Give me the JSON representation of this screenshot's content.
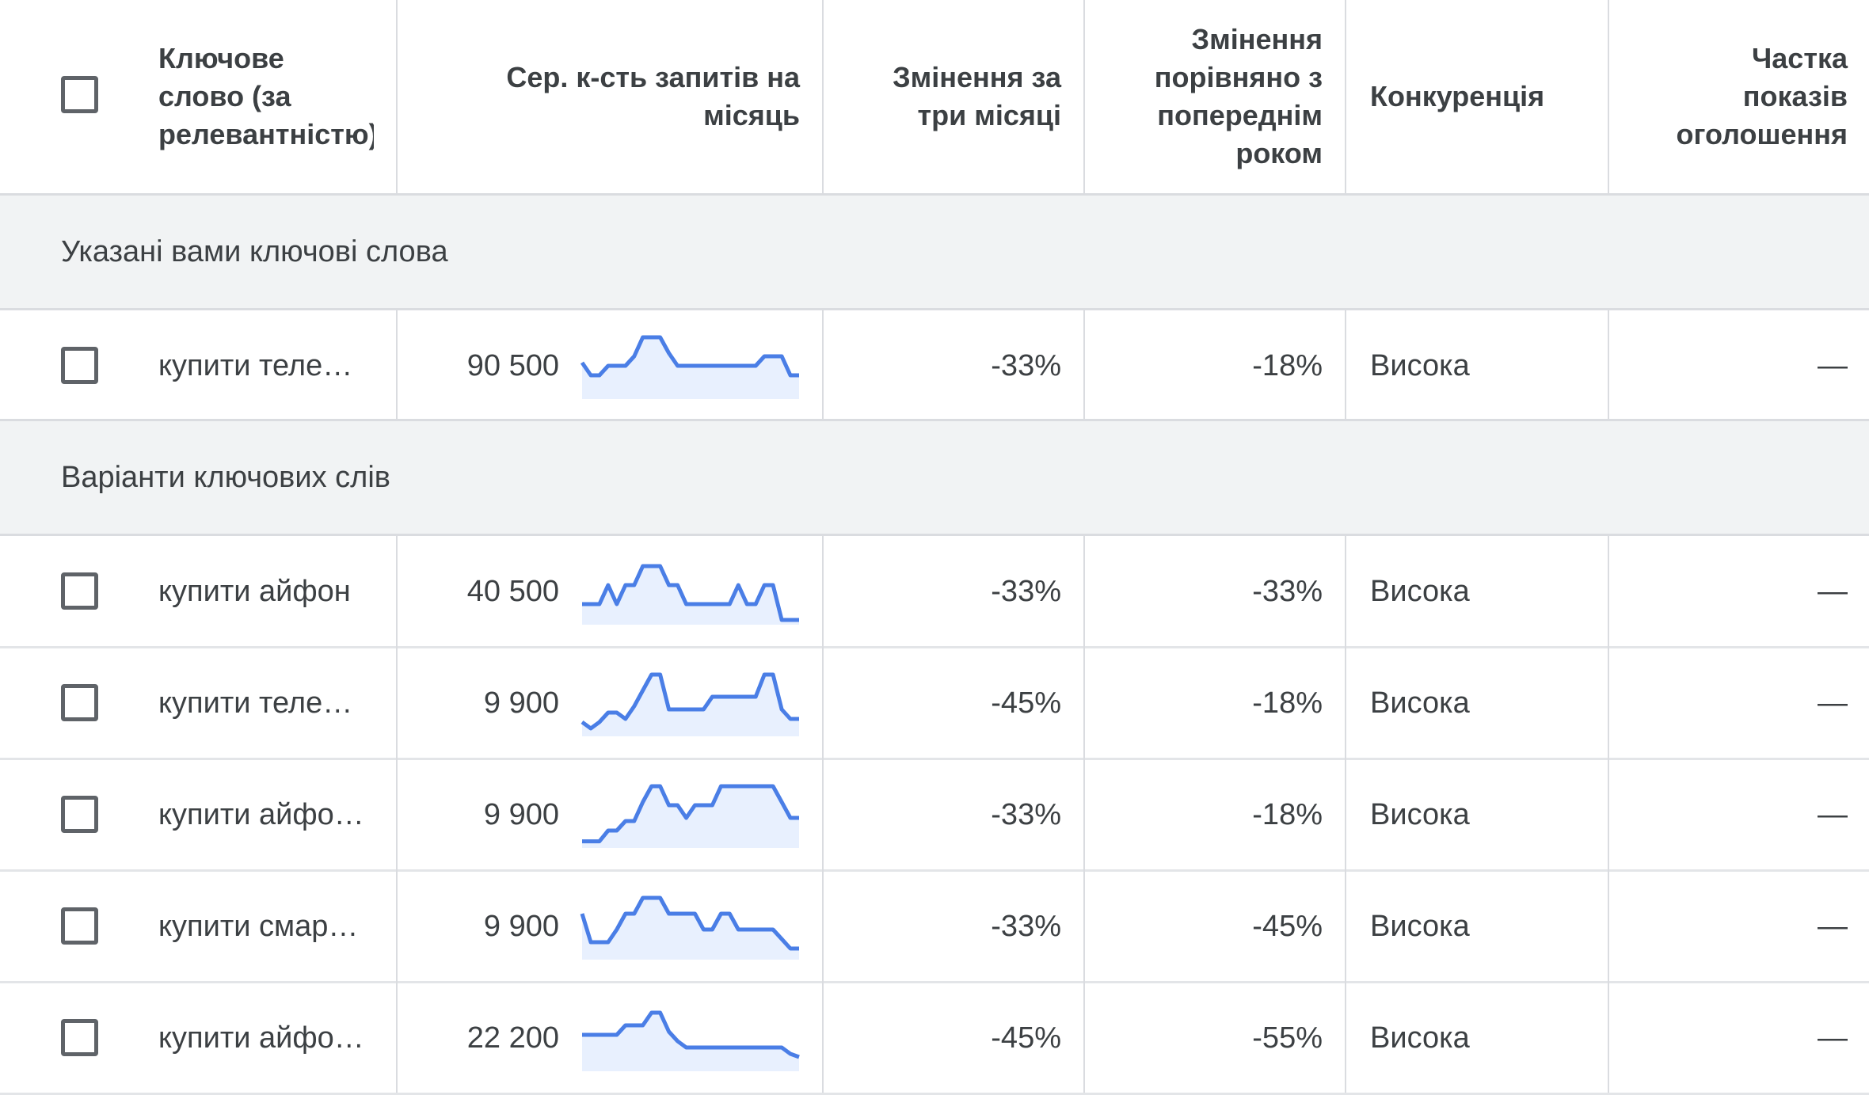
{
  "columns": {
    "keyword": [
      "Ключове",
      "слово (за",
      "релевантністю)"
    ],
    "avg_searches": [
      "Сер. к-сть запитів на",
      "місяць"
    ],
    "three_month": [
      "Змінення за",
      "три місяці"
    ],
    "yoy": [
      "Змінення",
      "порівняно з",
      "попереднім",
      "роком"
    ],
    "competition": [
      "Конкуренція"
    ],
    "impression_share": [
      "Частка",
      "показів",
      "оголошення"
    ]
  },
  "groups": {
    "provided": "Указані вами ключові слова",
    "ideas": "Варіанти ключових слів"
  },
  "provided_rows": [
    {
      "keyword": "купити теле…",
      "avg": "90 500",
      "trend": [
        0.55,
        0.35,
        0.35,
        0.5,
        0.5,
        0.5,
        0.65,
        0.95,
        0.95,
        0.95,
        0.7,
        0.5,
        0.5,
        0.5,
        0.5,
        0.5,
        0.5,
        0.5,
        0.5,
        0.5,
        0.5,
        0.65,
        0.65,
        0.65,
        0.35,
        0.35
      ],
      "three_month": "-33%",
      "yoy": "-18%",
      "competition": "Висока",
      "impression_share": "—"
    }
  ],
  "idea_rows": [
    {
      "keyword": "купити айфон",
      "avg": "40 500",
      "trend": [
        0.3,
        0.3,
        0.3,
        0.6,
        0.3,
        0.6,
        0.6,
        0.9,
        0.9,
        0.9,
        0.6,
        0.6,
        0.3,
        0.3,
        0.3,
        0.3,
        0.3,
        0.3,
        0.6,
        0.3,
        0.3,
        0.6,
        0.6,
        0.05,
        0.05,
        0.05
      ],
      "three_month": "-33%",
      "yoy": "-33%",
      "competition": "Висока",
      "impression_share": "—"
    },
    {
      "keyword": "купити теле…",
      "avg": "9 900",
      "trend": [
        0.2,
        0.1,
        0.2,
        0.35,
        0.35,
        0.25,
        0.45,
        0.7,
        0.95,
        0.95,
        0.4,
        0.4,
        0.4,
        0.4,
        0.4,
        0.6,
        0.6,
        0.6,
        0.6,
        0.6,
        0.6,
        0.95,
        0.95,
        0.4,
        0.25,
        0.25
      ],
      "three_month": "-45%",
      "yoy": "-18%",
      "competition": "Висока",
      "impression_share": "—"
    },
    {
      "keyword": "купити айфо…",
      "avg": "9 900",
      "trend": [
        0.08,
        0.08,
        0.08,
        0.25,
        0.25,
        0.4,
        0.4,
        0.7,
        0.95,
        0.95,
        0.65,
        0.65,
        0.45,
        0.65,
        0.65,
        0.65,
        0.95,
        0.95,
        0.95,
        0.95,
        0.95,
        0.95,
        0.95,
        0.7,
        0.45,
        0.45
      ],
      "three_month": "-33%",
      "yoy": "-18%",
      "competition": "Висока",
      "impression_share": "—"
    },
    {
      "keyword": "купити смар…",
      "avg": "9 900",
      "trend": [
        0.7,
        0.25,
        0.25,
        0.25,
        0.45,
        0.7,
        0.7,
        0.95,
        0.95,
        0.95,
        0.7,
        0.7,
        0.7,
        0.7,
        0.45,
        0.45,
        0.7,
        0.7,
        0.45,
        0.45,
        0.45,
        0.45,
        0.45,
        0.3,
        0.15,
        0.15
      ],
      "three_month": "-33%",
      "yoy": "-45%",
      "competition": "Висока",
      "impression_share": "—"
    },
    {
      "keyword": "купити айфо…",
      "avg": "22 200",
      "trend": [
        0.55,
        0.55,
        0.55,
        0.55,
        0.55,
        0.7,
        0.7,
        0.7,
        0.9,
        0.9,
        0.6,
        0.45,
        0.35,
        0.35,
        0.35,
        0.35,
        0.35,
        0.35,
        0.35,
        0.35,
        0.35,
        0.35,
        0.35,
        0.35,
        0.25,
        0.2
      ],
      "three_month": "-45%",
      "yoy": "-55%",
      "competition": "Висока",
      "impression_share": "—"
    }
  ],
  "colors": {
    "spark_line": "#4a7ee6",
    "spark_fill": "#e8f0fe",
    "group_bg": "#f1f3f4",
    "divider": "#dadce0"
  }
}
